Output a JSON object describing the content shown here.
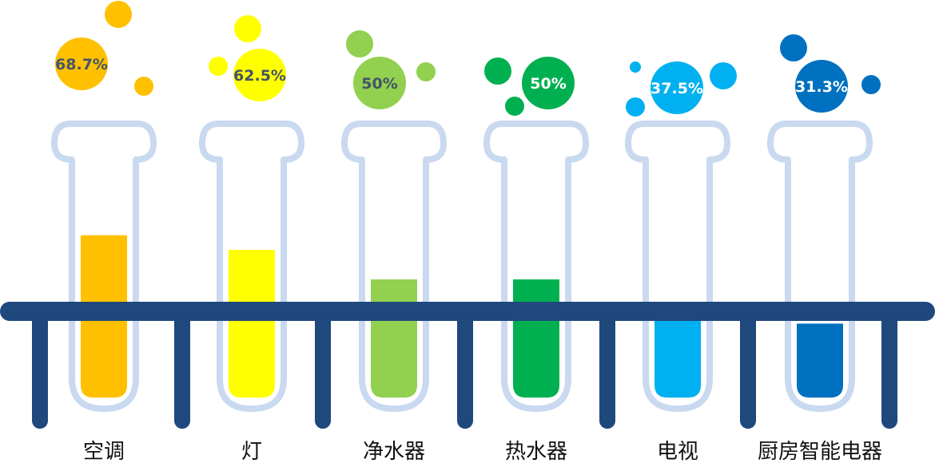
{
  "chart_data": {
    "type": "bar",
    "categories": [
      "空调",
      "灯",
      "净水器",
      "热水器",
      "电视",
      "厨房智能电器"
    ],
    "values": [
      68.7,
      62.5,
      50,
      50,
      37.5,
      31.3
    ],
    "value_labels": [
      "68.7%",
      "62.5%",
      "50%",
      "50%",
      "37.5%",
      "31.3%"
    ],
    "unit": "%",
    "ylim": [
      0,
      100
    ],
    "colors": [
      "#FFC000",
      "#FFFF00",
      "#92D050",
      "#00B050",
      "#00B0F0",
      "#0070C0"
    ],
    "label_colors": [
      "#44546A",
      "#44546A",
      "#44546A",
      "#ffffff",
      "#ffffff",
      "#ffffff"
    ],
    "tube_color": "#C9D9F0",
    "rack_color": "#1F497D",
    "title": "",
    "xlabel": "",
    "ylabel": "",
    "legend": "none",
    "grid": false
  }
}
